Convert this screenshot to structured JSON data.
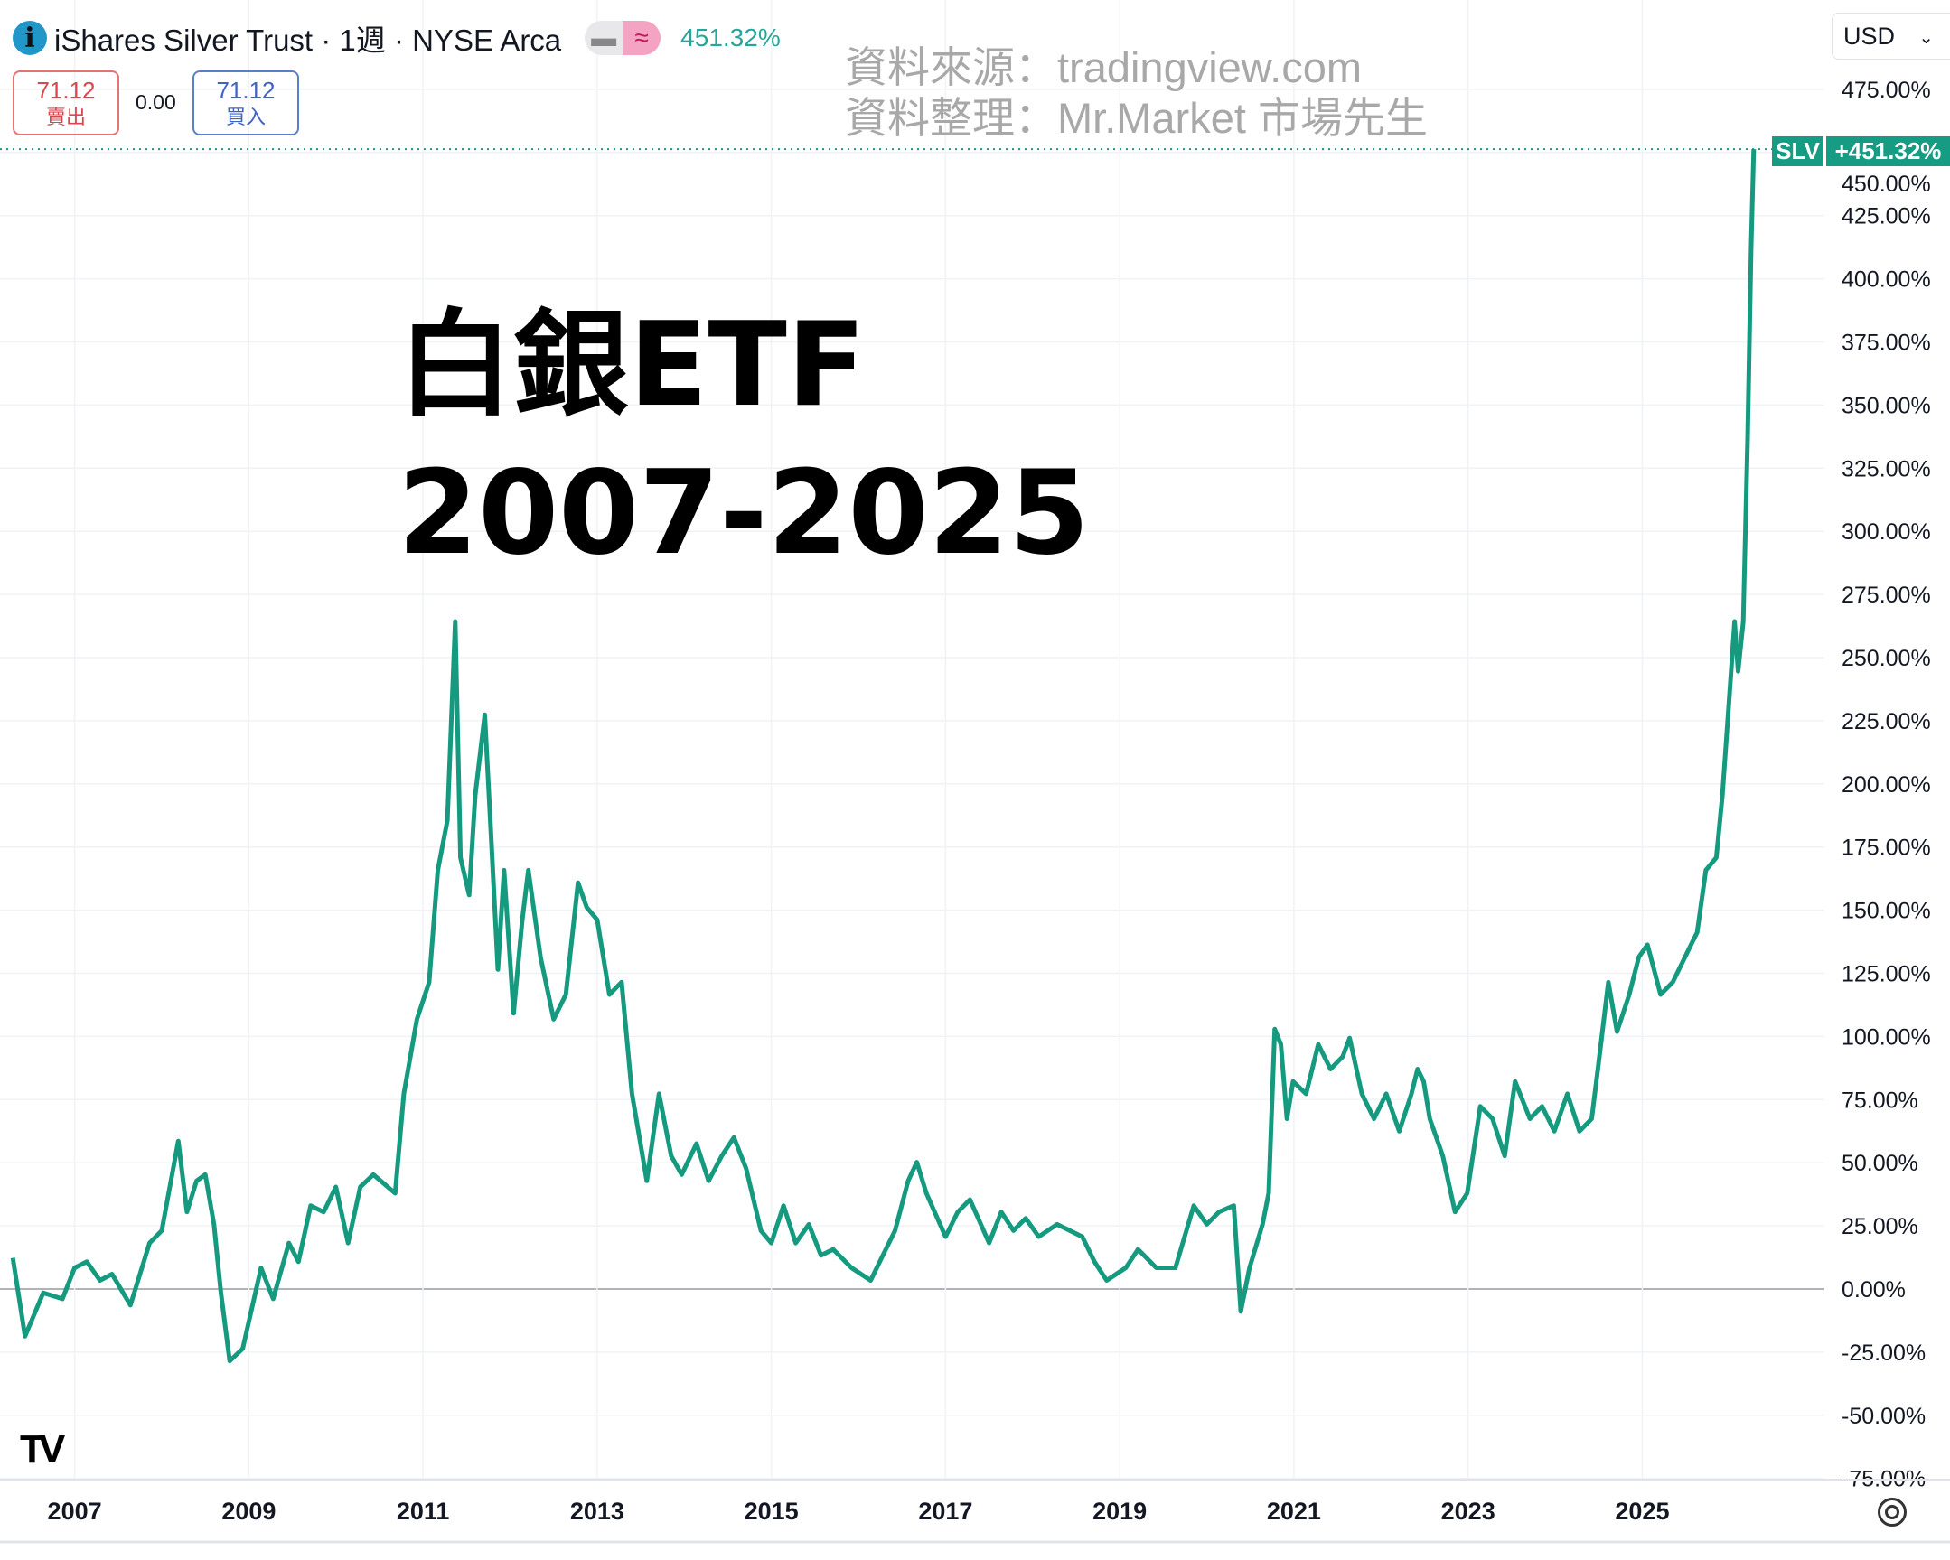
{
  "header": {
    "info_icon": "info-icon",
    "title": "iShares Silver Trust · 1週 · NYSE Arca",
    "change_pct": "451.32%",
    "sell_price": "71.12",
    "sell_label": "賣出",
    "spread": "0.00",
    "buy_price": "71.12",
    "buy_label": "買入"
  },
  "watermark": {
    "source": "資料來源：tradingview.com",
    "compiled": "資料整理：Mr.Market 市場先生"
  },
  "overlay_title": {
    "line1": "白銀ETF",
    "line2": "2007-2025"
  },
  "currency_select": {
    "value": "USD"
  },
  "price_tag": {
    "symbol": "SLV",
    "value": "+451.32%"
  },
  "colors": {
    "line": "#159a80",
    "tag": "#159c83",
    "grid": "#f0f2f5",
    "zero_line": "#b0b3ba"
  },
  "chart_data": {
    "type": "line",
    "title": "",
    "xlabel": "",
    "ylabel": "",
    "x_ticks": [
      "2007",
      "2009",
      "2011",
      "2013",
      "2015",
      "2017",
      "2019",
      "2021",
      "2023",
      "2025"
    ],
    "y_ticks": [
      "475.00%",
      "450.00%",
      "425.00%",
      "400.00%",
      "375.00%",
      "350.00%",
      "325.00%",
      "300.00%",
      "275.00%",
      "250.00%",
      "225.00%",
      "200.00%",
      "175.00%",
      "150.00%",
      "125.00%",
      "100.00%",
      "75.00%",
      "50.00%",
      "25.00%",
      "0.00%",
      "-25.00%",
      "-50.00%",
      "-75.00%"
    ],
    "ylim": [
      -75,
      475
    ],
    "grid": true,
    "series": [
      {
        "name": "SLV",
        "x": [
          2006.29,
          2006.43,
          2006.64,
          2006.86,
          2007.0,
          2007.14,
          2007.29,
          2007.43,
          2007.64,
          2007.86,
          2008.0,
          2008.19,
          2008.29,
          2008.4,
          2008.5,
          2008.6,
          2008.68,
          2008.78,
          2008.93,
          2009.14,
          2009.28,
          2009.46,
          2009.57,
          2009.71,
          2009.86,
          2010.0,
          2010.14,
          2010.28,
          2010.43,
          2010.68,
          2010.78,
          2010.93,
          2011.07,
          2011.17,
          2011.28,
          2011.37,
          2011.43,
          2011.53,
          2011.6,
          2011.71,
          2011.78,
          2011.86,
          2011.93,
          2012.04,
          2012.14,
          2012.21,
          2012.35,
          2012.5,
          2012.64,
          2012.78,
          2012.88,
          2013.0,
          2013.14,
          2013.28,
          2013.4,
          2013.57,
          2013.71,
          2013.85,
          2013.97,
          2014.14,
          2014.28,
          2014.43,
          2014.57,
          2014.71,
          2014.88,
          2015.0,
          2015.14,
          2015.28,
          2015.43,
          2015.57,
          2015.71,
          2015.92,
          2016.14,
          2016.28,
          2016.42,
          2016.57,
          2016.67,
          2016.78,
          2017.0,
          2017.14,
          2017.28,
          2017.5,
          2017.64,
          2017.78,
          2017.92,
          2018.07,
          2018.28,
          2018.57,
          2018.71,
          2018.85,
          2019.07,
          2019.21,
          2019.42,
          2019.64,
          2019.85,
          2020.0,
          2020.14,
          2020.31,
          2020.39,
          2020.49,
          2020.64,
          2020.71,
          2020.78,
          2020.85,
          2020.92,
          2020.99,
          2021.14,
          2021.28,
          2021.42,
          2021.56,
          2021.64,
          2021.78,
          2021.92,
          2022.06,
          2022.21,
          2022.35,
          2022.42,
          2022.49,
          2022.56,
          2022.71,
          2022.85,
          2022.99,
          2023.14,
          2023.28,
          2023.42,
          2023.54,
          2023.71,
          2023.85,
          2023.99,
          2024.14,
          2024.28,
          2024.42,
          2024.49,
          2024.61,
          2024.71,
          2024.85,
          2024.96,
          2025.06,
          2025.21,
          2025.35,
          2025.49,
          2025.56,
          2025.63,
          2025.73,
          2025.85,
          2025.92,
          2025.99,
          2026.06,
          2026.1,
          2026.16,
          2026.21,
          2026.25,
          2026.28
        ],
        "values": [
          12.3,
          -18.7,
          -1.5,
          -3.9,
          8.4,
          10.8,
          3.4,
          5.9,
          -6.4,
          18.2,
          23.1,
          58.6,
          30.5,
          42.8,
          45.3,
          25.6,
          -1.5,
          -28.5,
          -23.6,
          8.4,
          -3.9,
          18.2,
          10.8,
          33.0,
          30.5,
          40.4,
          18.2,
          40.4,
          45.3,
          37.9,
          77.3,
          106.8,
          121.5,
          165.8,
          185.5,
          264.3,
          170.8,
          156.0,
          195.4,
          227.4,
          180.6,
          126.5,
          165.8,
          109.2,
          146.2,
          165.8,
          131.4,
          106.8,
          116.6,
          160.9,
          151.1,
          146.2,
          116.6,
          121.5,
          77.3,
          42.8,
          77.3,
          52.7,
          45.3,
          57.6,
          42.8,
          52.7,
          60.0,
          47.7,
          23.1,
          18.2,
          33.0,
          18.2,
          25.6,
          13.3,
          15.7,
          8.4,
          3.4,
          13.3,
          23.1,
          42.8,
          50.2,
          37.9,
          20.7,
          30.5,
          35.4,
          18.2,
          30.5,
          23.1,
          28.0,
          20.7,
          25.6,
          20.7,
          10.8,
          3.4,
          8.4,
          15.7,
          8.4,
          8.4,
          33.0,
          25.6,
          30.5,
          33.0,
          -8.9,
          8.4,
          25.6,
          37.9,
          102.9,
          96.9,
          67.4,
          82.2,
          77.3,
          96.9,
          87.1,
          92.0,
          99.4,
          77.3,
          67.4,
          77.3,
          62.5,
          77.3,
          87.1,
          82.2,
          67.4,
          52.7,
          30.5,
          37.9,
          72.3,
          67.4,
          52.7,
          82.2,
          67.4,
          72.3,
          62.5,
          77.3,
          62.5,
          67.4,
          87.1,
          121.5,
          101.9,
          116.6,
          131.4,
          136.3,
          116.6,
          121.5,
          131.4,
          136.3,
          141.2,
          165.8,
          170.8,
          195.4,
          229.8,
          264.3,
          244.6,
          264.3,
          338.1,
          411.9,
          451.32
        ]
      }
    ],
    "last_value_line": 451.32
  }
}
